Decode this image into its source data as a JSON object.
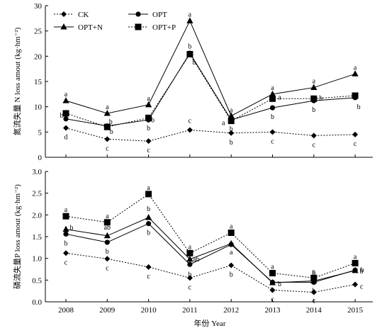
{
  "xlabel": "年份 Year",
  "categories": [
    "2008",
    "2009",
    "2010",
    "2011",
    "2012",
    "2013",
    "2014",
    "2015"
  ],
  "chart_data": [
    {
      "type": "line",
      "ylabel": "氮流失量 N loss amout (kg·hm⁻²)",
      "ylim": [
        0,
        30
      ],
      "yticks": [
        "0",
        "5",
        "10",
        "15",
        "20",
        "25",
        "30"
      ],
      "legend": "top-left",
      "series": [
        {
          "name": "CK",
          "marker": "diamond",
          "dash": "dotted",
          "values": [
            5.8,
            3.6,
            3.2,
            5.4,
            4.8,
            5.0,
            4.3,
            4.5
          ],
          "labels": [
            "d",
            "c",
            "c",
            "c",
            "b",
            "c",
            "c",
            "c"
          ]
        },
        {
          "name": "OPT",
          "marker": "circle",
          "dash": "solid",
          "values": [
            7.6,
            6.2,
            7.4,
            20.6,
            7.4,
            9.8,
            11.2,
            11.8
          ],
          "labels": [
            "c",
            "b",
            "b",
            "b",
            "b",
            "b",
            "b",
            "b"
          ]
        },
        {
          "name": "OPT+N",
          "marker": "triangle",
          "dash": "solid",
          "values": [
            11.2,
            8.7,
            10.4,
            27.0,
            8.2,
            12.5,
            13.8,
            16.5
          ],
          "labels": [
            "a",
            "a",
            "a",
            "a",
            "a",
            "a",
            "a",
            "a"
          ]
        },
        {
          "name": "OPT+P",
          "marker": "square",
          "dash": "dotted",
          "values": [
            8.7,
            6.0,
            7.8,
            20.4,
            7.2,
            11.6,
            11.6,
            12.2
          ],
          "labels": [
            "b",
            "b",
            "b",
            "b",
            "a",
            "a",
            "b",
            "b"
          ]
        }
      ]
    },
    {
      "type": "line",
      "ylabel": "磷流失量P loss amout (kg·hm⁻²)",
      "ylim": [
        0,
        3.0
      ],
      "yticks": [
        "0.0",
        "0.5",
        "1.0",
        "1.5",
        "2.0",
        "2.5",
        "3.0"
      ],
      "series": [
        {
          "name": "CK",
          "marker": "diamond",
          "dash": "dotted",
          "values": [
            1.12,
            0.99,
            0.8,
            0.55,
            0.84,
            0.27,
            0.22,
            0.4
          ],
          "labels": [
            "c",
            "c",
            "c",
            "c",
            "b",
            "c",
            "c",
            "c"
          ]
        },
        {
          "name": "OPT",
          "marker": "circle",
          "dash": "solid",
          "values": [
            1.56,
            1.37,
            1.8,
            0.86,
            1.32,
            0.45,
            0.45,
            0.73
          ],
          "labels": [
            "b",
            "b",
            "b",
            "b",
            "a",
            "b",
            "b",
            "b"
          ]
        },
        {
          "name": "OPT+N",
          "marker": "triangle",
          "dash": "solid",
          "values": [
            1.67,
            1.52,
            1.94,
            0.98,
            1.34,
            0.44,
            0.48,
            0.72
          ],
          "labels": [
            "b",
            "ab",
            "b",
            "ab",
            "a",
            "b",
            "b",
            "b"
          ]
        },
        {
          "name": "OPT+P",
          "marker": "square",
          "dash": "dotted",
          "values": [
            1.97,
            1.83,
            2.48,
            1.12,
            1.59,
            0.66,
            0.55,
            0.89
          ],
          "labels": [
            "a",
            "a",
            "a",
            "a",
            "a",
            "a",
            "a",
            "a"
          ]
        }
      ]
    }
  ]
}
